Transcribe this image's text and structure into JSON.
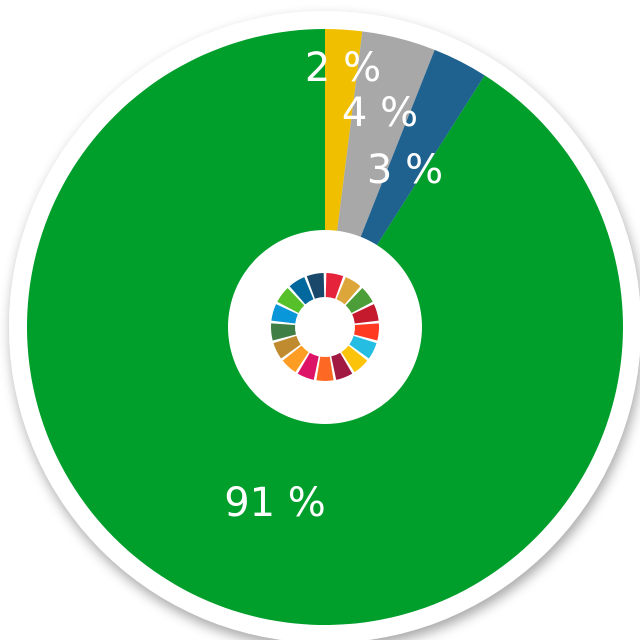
{
  "chart_data": {
    "type": "donut",
    "categories": [
      null,
      null,
      null,
      null
    ],
    "values": [
      2,
      4,
      3,
      91
    ],
    "value_labels": [
      "2 %",
      "4 %",
      "3 %",
      "91 %"
    ],
    "colors": [
      "#f0c000",
      "#a8a8a8",
      "#1f6290",
      "#009e2a"
    ]
  }
}
